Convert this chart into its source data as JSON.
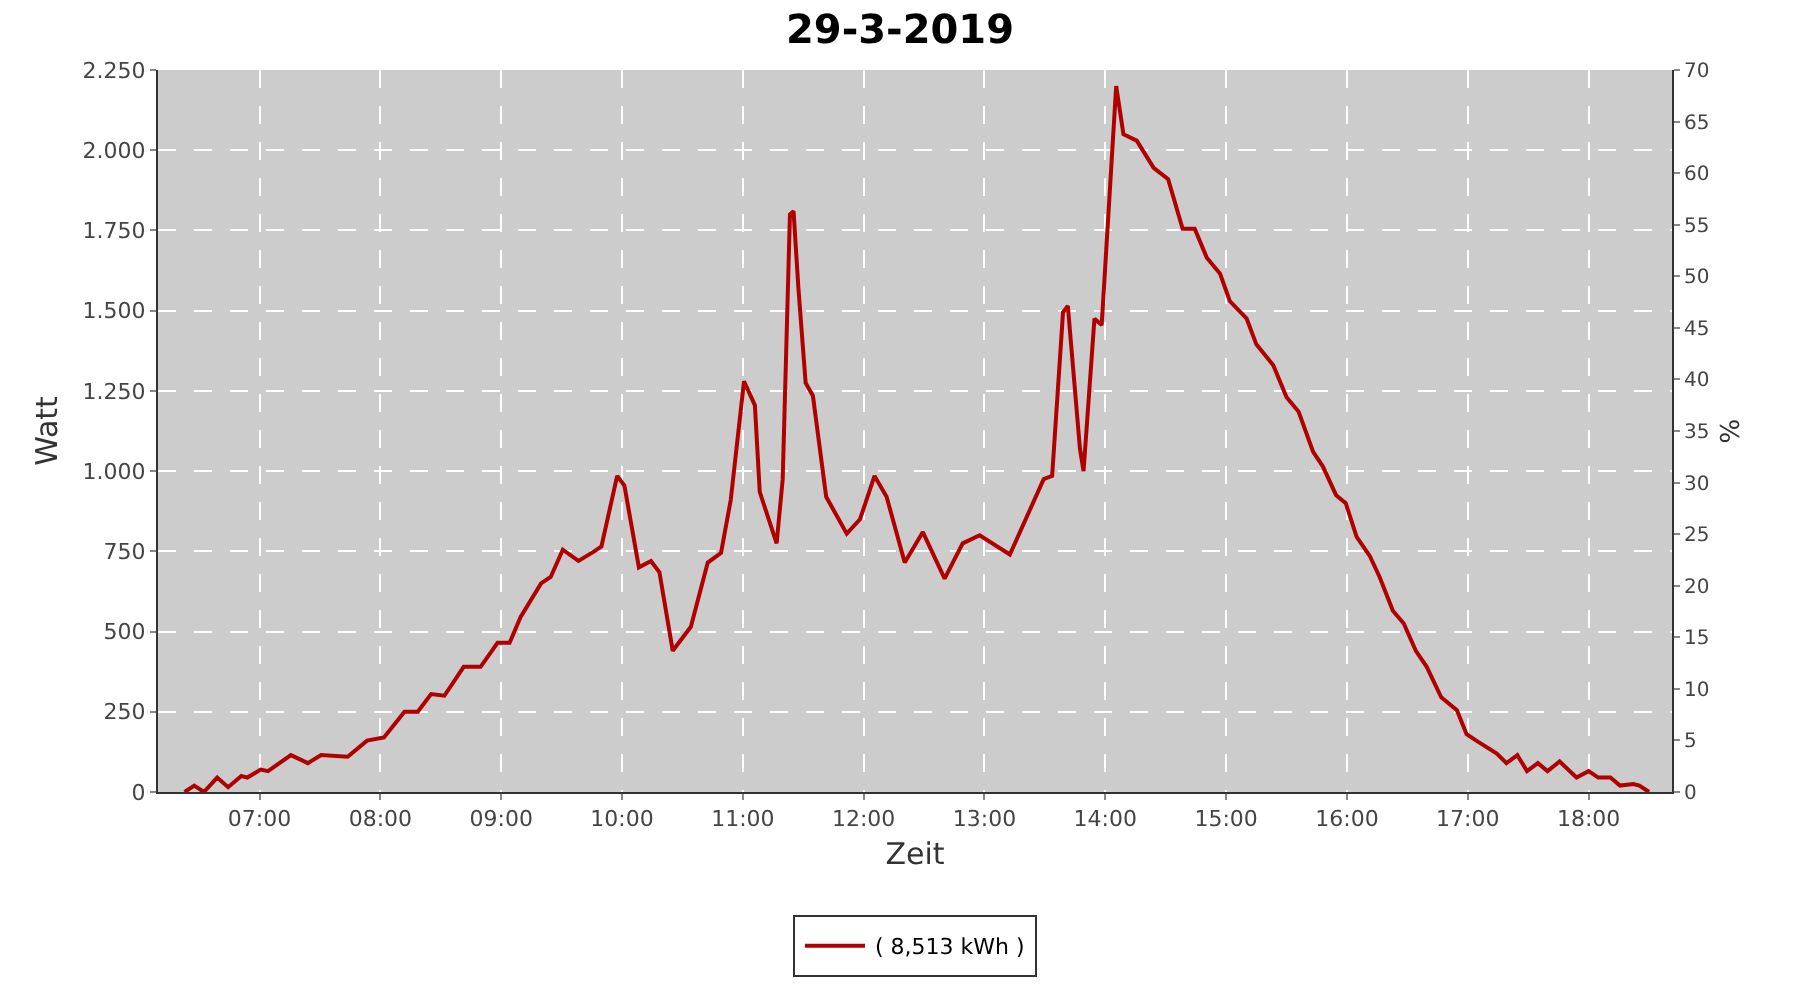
{
  "chart_data": {
    "type": "line",
    "title": "29-3-2019",
    "xlabel": "Zeit",
    "ylabel": "Watt",
    "y2label": "%",
    "series": [
      {
        "name": "( 8,513 kWh )",
        "color": "#b00000",
        "x": [
          6.38,
          6.46,
          6.54,
          6.65,
          6.74,
          6.85,
          6.9,
          7.01,
          7.07,
          7.26,
          7.4,
          7.51,
          7.73,
          7.89,
          8.03,
          8.2,
          8.31,
          8.42,
          8.53,
          8.69,
          8.83,
          8.97,
          9.07,
          9.16,
          9.33,
          9.41,
          9.51,
          9.64,
          9.77,
          9.83,
          9.96,
          10.02,
          10.14,
          10.24,
          10.31,
          10.42,
          10.57,
          10.71,
          10.82,
          10.9,
          11.01,
          11.1,
          11.14,
          11.28,
          11.33,
          11.39,
          11.42,
          11.46,
          11.52,
          11.58,
          11.69,
          11.86,
          11.97,
          12.09,
          12.19,
          12.34,
          12.49,
          12.67,
          12.82,
          12.96,
          13.21,
          13.49,
          13.56,
          13.65,
          13.69,
          13.79,
          13.82,
          13.91,
          13.97,
          14.09,
          14.15,
          14.26,
          14.4,
          14.52,
          14.64,
          14.74,
          14.84,
          14.95,
          15.03,
          15.17,
          15.25,
          15.39,
          15.5,
          15.6,
          15.72,
          15.8,
          15.91,
          15.99,
          16.08,
          16.19,
          16.27,
          16.38,
          16.47,
          16.57,
          16.66,
          16.78,
          16.91,
          16.99,
          17.07,
          17.24,
          17.32,
          17.41,
          17.49,
          17.58,
          17.66,
          17.76,
          17.9,
          18.0,
          18.08,
          18.18,
          18.26,
          18.37,
          18.42,
          18.5
        ],
        "values": [
          0,
          20,
          0,
          45,
          15,
          50,
          45,
          70,
          65,
          115,
          90,
          115,
          110,
          160,
          170,
          250,
          250,
          305,
          300,
          390,
          390,
          465,
          465,
          545,
          650,
          670,
          755,
          720,
          750,
          765,
          985,
          955,
          700,
          720,
          685,
          440,
          515,
          715,
          745,
          910,
          1280,
          1205,
          935,
          775,
          975,
          1800,
          1810,
          1570,
          1275,
          1235,
          920,
          805,
          850,
          985,
          920,
          715,
          810,
          665,
          775,
          800,
          740,
          975,
          985,
          1495,
          1515,
          1070,
          1000,
          1475,
          1455,
          2200,
          2050,
          2030,
          1945,
          1910,
          1755,
          1755,
          1665,
          1615,
          1530,
          1475,
          1395,
          1330,
          1230,
          1185,
          1060,
          1015,
          925,
          900,
          795,
          735,
          670,
          565,
          525,
          440,
          390,
          295,
          255,
          180,
          160,
          120,
          90,
          115,
          65,
          90,
          65,
          95,
          45,
          65,
          45,
          45,
          20,
          25,
          20,
          0
        ]
      }
    ],
    "xlim": [
      6.16,
      18.69
    ],
    "xticks": [
      {
        "value": 7,
        "label": "07:00"
      },
      {
        "value": 8,
        "label": "08:00"
      },
      {
        "value": 9,
        "label": "09:00"
      },
      {
        "value": 10,
        "label": "10:00"
      },
      {
        "value": 11,
        "label": "11:00"
      },
      {
        "value": 12,
        "label": "12:00"
      },
      {
        "value": 13,
        "label": "13:00"
      },
      {
        "value": 14,
        "label": "14:00"
      },
      {
        "value": 15,
        "label": "15:00"
      },
      {
        "value": 16,
        "label": "16:00"
      },
      {
        "value": 17,
        "label": "17:00"
      },
      {
        "value": 18,
        "label": "18:00"
      }
    ],
    "ylim": [
      0,
      2250
    ],
    "yticks": [
      {
        "value": 0,
        "label": "0"
      },
      {
        "value": 250,
        "label": "250"
      },
      {
        "value": 500,
        "label": "500"
      },
      {
        "value": 750,
        "label": "750"
      },
      {
        "value": 1000,
        "label": "1.000"
      },
      {
        "value": 1250,
        "label": "1.250"
      },
      {
        "value": 1500,
        "label": "1.500"
      },
      {
        "value": 1750,
        "label": "1.750"
      },
      {
        "value": 2000,
        "label": "2.000"
      },
      {
        "value": 2250,
        "label": "2.250"
      }
    ],
    "y2lim": [
      0,
      70
    ],
    "y2ticks": [
      0,
      5,
      10,
      15,
      20,
      25,
      30,
      35,
      40,
      45,
      50,
      55,
      60,
      65,
      70
    ],
    "grid": true,
    "legend": "bottom",
    "marker": "none",
    "line_style": "solid"
  }
}
